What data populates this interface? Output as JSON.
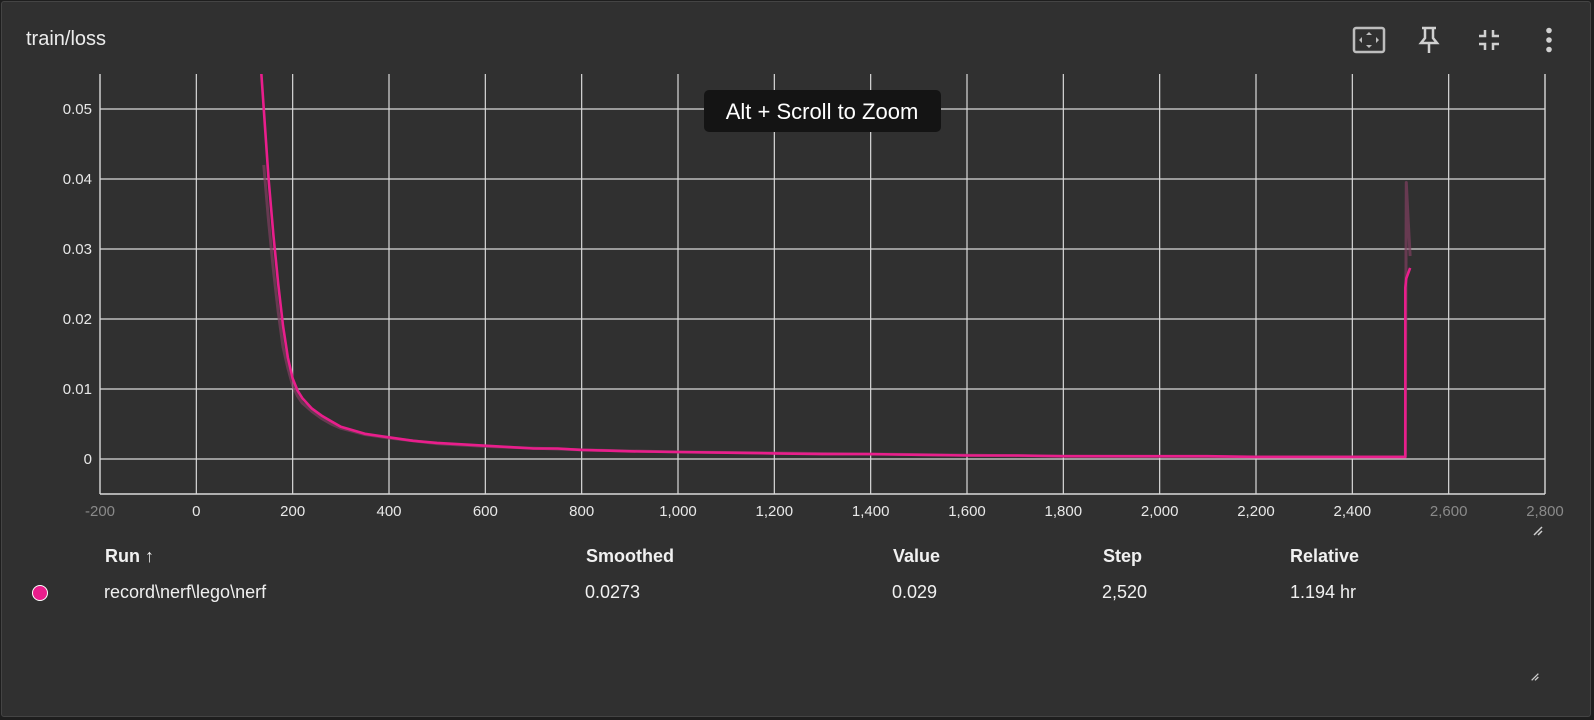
{
  "card": {
    "title": "train/loss"
  },
  "toolbar": {
    "buttons": [
      {
        "icon": "fit-to-screen-icon"
      },
      {
        "icon": "pin-icon"
      },
      {
        "icon": "collapse-icon"
      },
      {
        "icon": "more-vert-icon"
      }
    ]
  },
  "hint_text": "Alt + Scroll to Zoom",
  "colors": {
    "accent": "#e91e8c",
    "raw": "#7a3e5c",
    "grid": "#d9d9d9",
    "background": "#303030"
  },
  "chart_data": {
    "type": "line",
    "title": "train/loss",
    "xlabel": "",
    "ylabel": "",
    "xlim": [
      -200,
      2800
    ],
    "ylim": [
      -0.005,
      0.055
    ],
    "x_ticks": [
      -200,
      0,
      200,
      400,
      600,
      800,
      1000,
      1200,
      1400,
      1600,
      1800,
      2000,
      2200,
      2400,
      2600,
      2800
    ],
    "x_tick_labels": [
      "-200",
      "0",
      "200",
      "400",
      "600",
      "800",
      "1,000",
      "1,200",
      "1,400",
      "1,600",
      "1,800",
      "2,000",
      "2,200",
      "2,400",
      "2,600",
      "2,800"
    ],
    "y_ticks": [
      0,
      0.01,
      0.02,
      0.03,
      0.04,
      0.05
    ],
    "y_tick_labels": [
      "0",
      "0.01",
      "0.02",
      "0.03",
      "0.04",
      "0.05"
    ],
    "grid": true,
    "series": [
      {
        "name": "record\\nerf\\lego\\nerf",
        "role": "smoothed",
        "x": [
          130,
          140,
          150,
          160,
          170,
          180,
          190,
          200,
          210,
          220,
          240,
          260,
          280,
          300,
          350,
          400,
          450,
          500,
          550,
          600,
          650,
          700,
          750,
          800,
          850,
          900,
          1000,
          1100,
          1200,
          1300,
          1400,
          1500,
          1600,
          1700,
          1800,
          1900,
          2000,
          2100,
          2200,
          2300,
          2400,
          2510,
          2510,
          2512,
          2520
        ],
        "y": [
          0.06,
          0.05,
          0.04,
          0.032,
          0.025,
          0.019,
          0.0145,
          0.0115,
          0.0098,
          0.0087,
          0.0072,
          0.0062,
          0.0054,
          0.0046,
          0.0036,
          0.0031,
          0.0026,
          0.0023,
          0.0021,
          0.0019,
          0.0017,
          0.0015,
          0.0015,
          0.0013,
          0.0012,
          0.0011,
          0.001,
          0.0009,
          0.0008,
          0.0007,
          0.0007,
          0.0006,
          0.0005,
          0.0005,
          0.0004,
          0.0004,
          0.0004,
          0.0004,
          0.0003,
          0.0003,
          0.0003,
          0.0003,
          0.0245,
          0.0258,
          0.0273
        ]
      },
      {
        "name": "record\\nerf\\lego\\nerf",
        "role": "raw",
        "x": [
          140,
          150,
          160,
          170,
          180,
          190,
          200,
          210,
          220,
          240,
          260,
          280,
          300,
          350,
          400,
          500,
          600,
          800,
          1000,
          1400,
          1800,
          2200,
          2500,
          2510,
          2512,
          2516,
          2520
        ],
        "y": [
          0.042,
          0.034,
          0.027,
          0.021,
          0.016,
          0.013,
          0.0105,
          0.009,
          0.008,
          0.0068,
          0.0058,
          0.005,
          0.0044,
          0.0035,
          0.003,
          0.0022,
          0.0018,
          0.0013,
          0.001,
          0.0007,
          0.0004,
          0.0003,
          0.0003,
          0.0003,
          0.0395,
          0.034,
          0.029
        ]
      }
    ]
  },
  "table": {
    "headers": {
      "run": "Run ↑",
      "smoothed": "Smoothed",
      "value": "Value",
      "step": "Step",
      "relative": "Relative"
    },
    "rows": [
      {
        "run": "record\\nerf\\lego\\nerf",
        "smoothed": "0.0273",
        "value": "0.029",
        "step": "2,520",
        "relative": "1.194 hr"
      }
    ]
  }
}
